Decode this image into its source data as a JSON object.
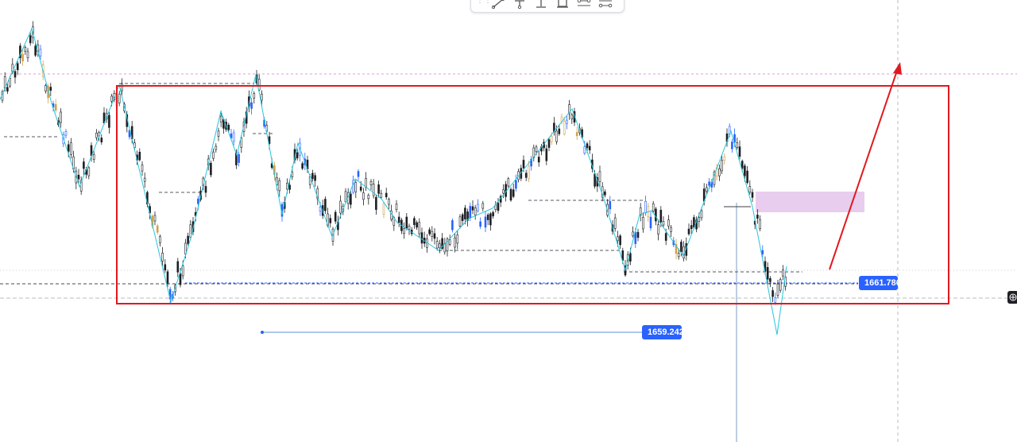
{
  "price_labels": {
    "upper": "1661.786",
    "lower": "1659.242"
  },
  "toolbar": {
    "tools": [
      "drag-handle-icon",
      "trend-line-icon",
      "pin-icon",
      "anchor-icon",
      "rectangle-icon",
      "range-icon",
      "measure-icon"
    ]
  },
  "colors": {
    "range_box": "#e0191f",
    "arrow": "#e0191f",
    "zigzag": "#26c6da",
    "price_line": "#2962ff",
    "supply_zone": "#e8cdee",
    "bull_candle": "#2962ff",
    "bear_candle": "#1d1f24",
    "highlight_candle": "#d4a14b"
  }
}
